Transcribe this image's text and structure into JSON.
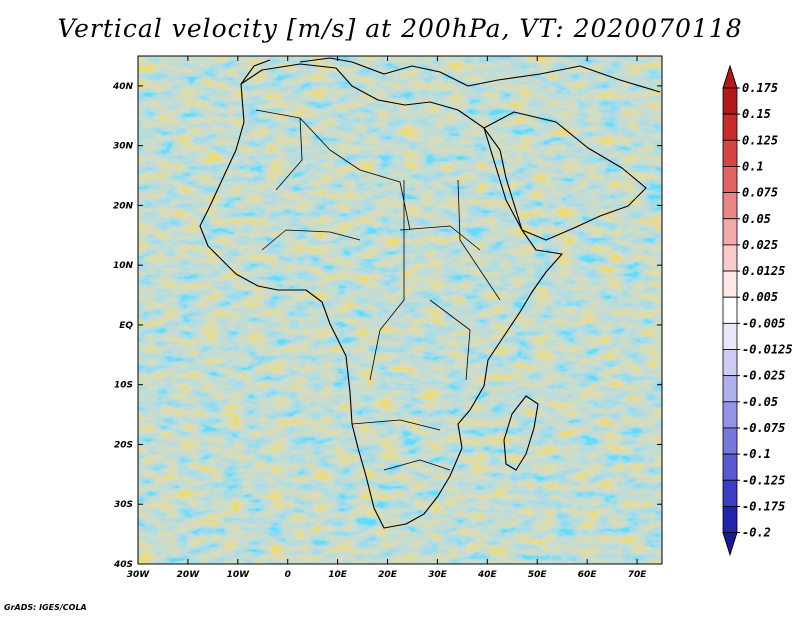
{
  "title": "Vertical velocity [m/s] at 200hPa, VT: 2020070118",
  "credit": "GrADS: IGES/COLA",
  "map": {
    "lon_labels": [
      "30W",
      "20W",
      "10W",
      "0",
      "10E",
      "20E",
      "30E",
      "40E",
      "50E",
      "60E",
      "70E"
    ],
    "lat_labels": [
      "40N",
      "30N",
      "20N",
      "10N",
      "EQ",
      "10S",
      "20S",
      "30S",
      "40S"
    ],
    "lon_range": [
      -30,
      75
    ],
    "lat_range": [
      -40,
      45
    ]
  },
  "colorbar": {
    "labels": [
      "0.175",
      "0.15",
      "0.125",
      "0.1",
      "0.075",
      "0.05",
      "0.025",
      "0.0125",
      "0.005",
      "-0.005",
      "-0.0125",
      "-0.025",
      "-0.05",
      "-0.075",
      "-0.1",
      "-0.125",
      "-0.175",
      "-0.2"
    ],
    "colors": [
      "#b01a1a",
      "#c82b2b",
      "#d64545",
      "#e06464",
      "#ea8686",
      "#f2aaaa",
      "#f8cccc",
      "#fde7e7",
      "#ffffff",
      "#e8e8fa",
      "#ccccf4",
      "#b0b0ee",
      "#9494e6",
      "#7777dc",
      "#5a5ad0",
      "#3d3dc2",
      "#2424aa"
    ],
    "top_color": "#b01a1a",
    "bottom_color": "#1a1a99"
  }
}
